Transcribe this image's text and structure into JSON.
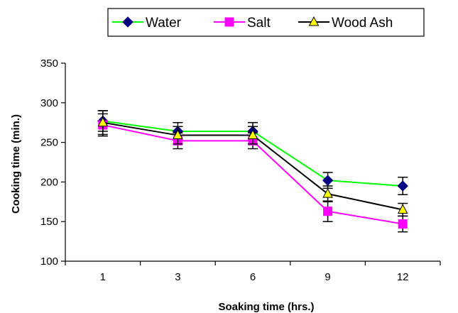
{
  "chart_data": {
    "type": "line",
    "title": "",
    "xlabel": "Soaking time (hrs.)",
    "ylabel": "Cooking time (min.)",
    "categories": [
      "1",
      "3",
      "6",
      "9",
      "12"
    ],
    "ylim": [
      100,
      350
    ],
    "yticks": [
      100,
      150,
      200,
      250,
      300,
      350
    ],
    "grid": false,
    "legend_position": "top",
    "error_bars": true,
    "series": [
      {
        "name": "Water",
        "values": [
          277,
          264,
          264,
          202,
          195
        ],
        "errors": [
          13,
          11,
          11,
          10,
          11
        ],
        "line_color": "#00ff00",
        "marker": "diamond",
        "marker_color": "#000080"
      },
      {
        "name": "Salt",
        "values": [
          272,
          252,
          252,
          163,
          147
        ],
        "errors": [
          14,
          10,
          10,
          13,
          10
        ],
        "line_color": "#ff00ff",
        "marker": "square",
        "marker_color": "#ff00ff"
      },
      {
        "name": "Wood Ash",
        "values": [
          275,
          259,
          259,
          185,
          165
        ],
        "errors": [
          15,
          11,
          11,
          10,
          8
        ],
        "line_color": "#000000",
        "marker": "triangle",
        "marker_color": "#ffff00"
      }
    ]
  }
}
